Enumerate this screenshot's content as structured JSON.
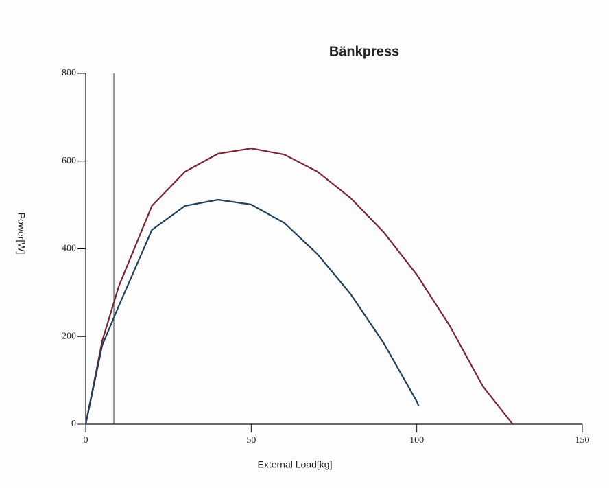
{
  "chart_data": {
    "type": "line",
    "title": "Bänkpress",
    "x_label": "External Load[kg]",
    "y_label": "Power[W]",
    "xlim": [
      0,
      150
    ],
    "xticks": [
      0,
      50,
      100,
      150
    ],
    "ylim": [
      0,
      800
    ],
    "yticks": [
      0,
      200,
      400,
      600,
      800
    ],
    "reference_x": 8.5,
    "series": [
      {
        "color": "#7b2433",
        "x": [
          0,
          5,
          10,
          20,
          30,
          40,
          50,
          60,
          70,
          80,
          90,
          100,
          110,
          120,
          129
        ],
        "values": [
          0,
          190,
          315,
          498,
          576,
          617,
          629,
          615,
          576,
          516,
          438,
          341,
          224,
          86,
          0
        ]
      },
      {
        "color": "#1f3f5a",
        "x": [
          0,
          5,
          10,
          20,
          30,
          40,
          50,
          60,
          70,
          80,
          90,
          100,
          100.6
        ],
        "values": [
          0,
          180,
          270,
          443,
          498,
          512,
          501,
          459,
          388,
          297,
          185,
          52,
          41
        ]
      }
    ]
  }
}
